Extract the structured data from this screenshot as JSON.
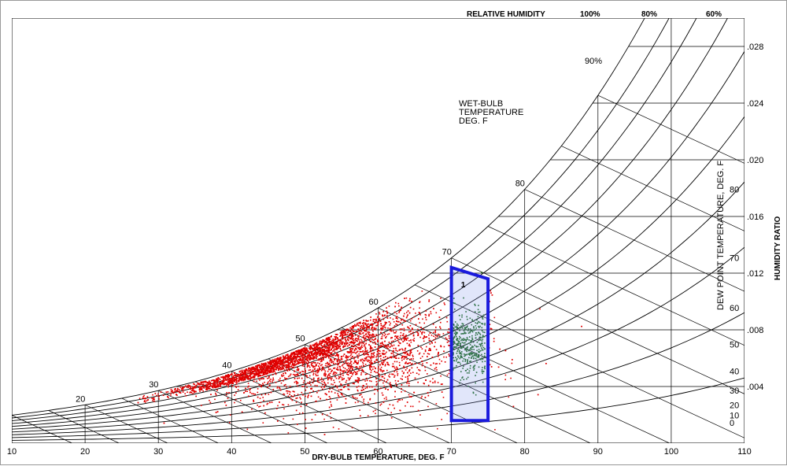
{
  "chart_data": {
    "type": "scatter",
    "title": "",
    "xlabel": "DRY-BULB TEMPERATURE, DEG. F",
    "ylabel_right": "HUMIDITY RATIO",
    "dewpoint_label": "DEW POINT TEMPERATURE, DEG. F",
    "wetbulb_label": [
      "WET-BULB",
      "TEMPERATURE",
      "DEG. F"
    ],
    "rh_title": "RELATIVE HUMIDITY",
    "xlim": [
      10,
      110
    ],
    "ylim": [
      0,
      0.03
    ],
    "x_ticks": [
      "10",
      "20",
      "30",
      "40",
      "50",
      "60",
      "70",
      "80",
      "90",
      "100",
      "110"
    ],
    "w_ticks": [
      {
        "value": 0.004,
        "label": ".004"
      },
      {
        "value": 0.008,
        "label": ".008"
      },
      {
        "value": 0.012,
        "label": ".012"
      },
      {
        "value": 0.016,
        "label": ".016"
      },
      {
        "value": 0.02,
        "label": ".020"
      },
      {
        "value": 0.024,
        "label": ".024"
      },
      {
        "value": 0.028,
        "label": ".028"
      }
    ],
    "dewpoint_ticks": [
      "0",
      "10",
      "20",
      "30",
      "40",
      "50",
      "60",
      "70",
      "80"
    ],
    "wetbulb_ticks": [
      "20",
      "30",
      "40",
      "50",
      "60",
      "70",
      "80"
    ],
    "rh_curves": [
      {
        "rh": 1.0,
        "label": "100%"
      },
      {
        "rh": 0.9,
        "label": "90%"
      },
      {
        "rh": 0.8,
        "label": "80%"
      },
      {
        "rh": 0.7,
        "label": ""
      },
      {
        "rh": 0.6,
        "label": "60%"
      },
      {
        "rh": 0.5,
        "label": ""
      },
      {
        "rh": 0.4,
        "label": ""
      },
      {
        "rh": 0.3,
        "label": ""
      },
      {
        "rh": 0.2,
        "label": ""
      },
      {
        "rh": 0.1,
        "label": ""
      }
    ],
    "comfort_zone": {
      "label": "1",
      "color": "#1a1adc",
      "points": [
        [
          70,
          0.0016
        ],
        [
          70,
          0.0124
        ],
        [
          75,
          0.0116
        ],
        [
          75,
          0.0016
        ]
      ]
    },
    "series": [
      {
        "color": "#e00000",
        "count": 5200,
        "center_t": 52,
        "spread_t": 17,
        "center_w": 0.0067,
        "spread_w": 0.0019
      },
      {
        "color": "#1a6a1a",
        "count": 420,
        "t_range": [
          70.2,
          74.6
        ],
        "center_w": 0.0069,
        "spread_w": 0.0012
      }
    ]
  }
}
